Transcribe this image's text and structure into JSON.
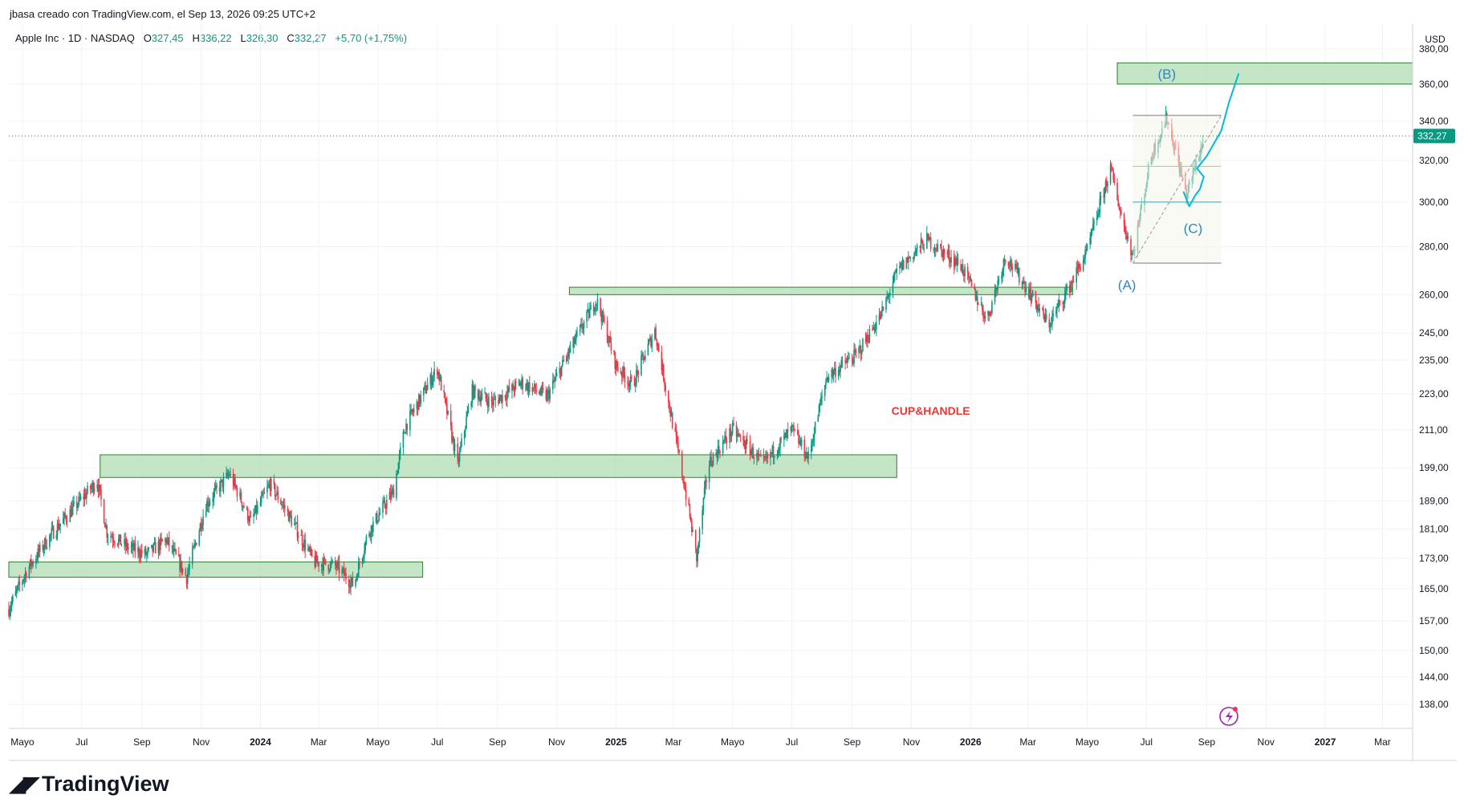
{
  "header": {
    "credit": "jbasa creado con TradingView.com, el Sep 13, 2026 09:25 UTC+2",
    "symbol": "Apple Inc · 1D · NASDAQ",
    "open_label": "O",
    "open": "327,45",
    "high_label": "H",
    "high": "336,22",
    "low_label": "L",
    "low": "326,30",
    "close_label": "C",
    "close": "332,27",
    "change": "+5,70 (+1,75%)"
  },
  "currency": "USD",
  "last_price_label": "332,27",
  "branding": {
    "logo_text": "TradingView"
  },
  "colors": {
    "up": "#089981",
    "down": "#f23645",
    "zone_fill": "#b7deb9",
    "zone_stroke": "#2e7d32",
    "wave_label": "#2e86c1",
    "projection": "#00bcd4",
    "annotation": "#e53935"
  },
  "chart_data": {
    "type": "candlestick",
    "symbol": "AAPL",
    "timeframe": "1D",
    "x_start": "2023-05-01",
    "x_end": "2027-04-15",
    "ylim": [
      133,
      395
    ],
    "y_scale": "log",
    "y_ticks": [
      {
        "v": 380,
        "label": "380,00"
      },
      {
        "v": 360,
        "label": "360,00"
      },
      {
        "v": 340,
        "label": "340,00"
      },
      {
        "v": 320,
        "label": "320,00"
      },
      {
        "v": 300,
        "label": "300,00"
      },
      {
        "v": 280,
        "label": "280,00"
      },
      {
        "v": 260,
        "label": "260,00"
      },
      {
        "v": 245,
        "label": "245,00"
      },
      {
        "v": 235,
        "label": "235,00"
      },
      {
        "v": 223,
        "label": "223,00"
      },
      {
        "v": 211,
        "label": "211,00"
      },
      {
        "v": 199,
        "label": "199,00"
      },
      {
        "v": 189,
        "label": "189,00"
      },
      {
        "v": 181,
        "label": "181,00"
      },
      {
        "v": 173,
        "label": "173,00"
      },
      {
        "v": 165,
        "label": "165,00"
      },
      {
        "v": 157,
        "label": "157,00"
      },
      {
        "v": 150,
        "label": "150,00"
      },
      {
        "v": 144,
        "label": "144,00"
      },
      {
        "v": 138,
        "label": "138,00"
      }
    ],
    "x_ticks": [
      {
        "date": "2023-05-15",
        "label": "Mayo",
        "bold": false
      },
      {
        "date": "2023-07-15",
        "label": "Jul",
        "bold": false
      },
      {
        "date": "2023-09-15",
        "label": "Sep",
        "bold": false
      },
      {
        "date": "2023-11-15",
        "label": "Nov",
        "bold": false
      },
      {
        "date": "2024-01-15",
        "label": "2024",
        "bold": true
      },
      {
        "date": "2024-03-15",
        "label": "Mar",
        "bold": false
      },
      {
        "date": "2024-05-15",
        "label": "Mayo",
        "bold": false
      },
      {
        "date": "2024-07-15",
        "label": "Jul",
        "bold": false
      },
      {
        "date": "2024-09-15",
        "label": "Sep",
        "bold": false
      },
      {
        "date": "2024-11-15",
        "label": "Nov",
        "bold": false
      },
      {
        "date": "2025-01-15",
        "label": "2025",
        "bold": true
      },
      {
        "date": "2025-03-15",
        "label": "Mar",
        "bold": false
      },
      {
        "date": "2025-05-15",
        "label": "Mayo",
        "bold": false
      },
      {
        "date": "2025-07-15",
        "label": "Jul",
        "bold": false
      },
      {
        "date": "2025-09-15",
        "label": "Sep",
        "bold": false
      },
      {
        "date": "2025-11-15",
        "label": "Nov",
        "bold": false
      },
      {
        "date": "2026-01-15",
        "label": "2026",
        "bold": true
      },
      {
        "date": "2026-03-15",
        "label": "Mar",
        "bold": false
      },
      {
        "date": "2026-05-15",
        "label": "Mayo",
        "bold": false
      },
      {
        "date": "2026-07-15",
        "label": "Jul",
        "bold": false
      },
      {
        "date": "2026-09-15",
        "label": "Sep",
        "bold": false
      },
      {
        "date": "2026-11-15",
        "label": "Nov",
        "bold": false
      },
      {
        "date": "2027-01-15",
        "label": "2027",
        "bold": true
      },
      {
        "date": "2027-03-15",
        "label": "Mar",
        "bold": false
      }
    ],
    "price_path": [
      [
        "2023-05-01",
        160
      ],
      [
        "2023-05-20",
        170
      ],
      [
        "2023-06-15",
        180
      ],
      [
        "2023-07-10",
        188
      ],
      [
        "2023-07-31",
        195
      ],
      [
        "2023-08-10",
        180
      ],
      [
        "2023-08-31",
        176
      ],
      [
        "2023-09-20",
        174
      ],
      [
        "2023-10-10",
        178
      ],
      [
        "2023-10-31",
        168
      ],
      [
        "2023-11-20",
        188
      ],
      [
        "2023-12-14",
        197
      ],
      [
        "2024-01-05",
        183
      ],
      [
        "2024-01-25",
        194
      ],
      [
        "2024-02-15",
        184
      ],
      [
        "2024-03-10",
        172
      ],
      [
        "2024-04-01",
        171
      ],
      [
        "2024-04-20",
        166
      ],
      [
        "2024-05-05",
        180
      ],
      [
        "2024-05-31",
        192
      ],
      [
        "2024-06-12",
        212
      ],
      [
        "2024-07-15",
        232
      ],
      [
        "2024-08-05",
        200
      ],
      [
        "2024-08-20",
        224
      ],
      [
        "2024-09-10",
        220
      ],
      [
        "2024-10-10",
        227
      ],
      [
        "2024-11-05",
        222
      ],
      [
        "2024-11-25",
        236
      ],
      [
        "2024-12-26",
        258
      ],
      [
        "2025-01-15",
        233
      ],
      [
        "2025-02-01",
        226
      ],
      [
        "2025-02-24",
        246
      ],
      [
        "2025-03-10",
        220
      ],
      [
        "2025-04-08",
        173
      ],
      [
        "2025-04-20",
        200
      ],
      [
        "2025-05-15",
        211
      ],
      [
        "2025-06-15",
        200
      ],
      [
        "2025-07-15",
        211
      ],
      [
        "2025-08-01",
        202
      ],
      [
        "2025-08-20",
        229
      ],
      [
        "2025-09-20",
        237
      ],
      [
        "2025-10-15",
        252
      ],
      [
        "2025-11-01",
        270
      ],
      [
        "2025-12-01",
        283
      ],
      [
        "2026-01-05",
        272
      ],
      [
        "2026-02-01",
        250
      ],
      [
        "2026-02-20",
        276
      ],
      [
        "2026-03-15",
        262
      ],
      [
        "2026-04-05",
        248
      ],
      [
        "2026-04-25",
        262
      ],
      [
        "2026-05-15",
        278
      ],
      [
        "2026-06-08",
        316
      ],
      [
        "2026-06-20",
        292
      ],
      [
        "2026-07-01",
        276
      ],
      [
        "2026-07-20",
        322
      ],
      [
        "2026-08-05",
        342
      ],
      [
        "2026-08-25",
        303
      ],
      [
        "2026-09-13",
        332
      ]
    ],
    "zones": [
      {
        "from": "2023-05-01",
        "to": "2024-06-30",
        "low": 168,
        "high": 172
      },
      {
        "from": "2023-08-03",
        "to": "2025-10-31",
        "low": 196,
        "high": 203
      },
      {
        "from": "2024-11-28",
        "to": "2026-04-30",
        "low": 260,
        "high": 263
      },
      {
        "from": "2026-06-15",
        "to": "2027-04-15",
        "low": 360,
        "high": 372
      }
    ],
    "fib_box": {
      "from": "2026-07-01",
      "to": "2026-09-30",
      "levels": [
        {
          "price": 343,
          "color": "#787b86"
        },
        {
          "price": 317,
          "color": "#b8c66e"
        },
        {
          "price": 300,
          "color": "#00bcd4"
        },
        {
          "price": 273,
          "color": "#787b86"
        }
      ],
      "diagonal": {
        "from": [
          "2026-07-01",
          273
        ],
        "to": [
          "2026-09-30",
          343
        ]
      }
    },
    "projection": [
      [
        "2026-09-05",
        316
      ],
      [
        "2026-09-15",
        322
      ],
      [
        "2026-09-30",
        335
      ],
      [
        "2026-10-08",
        350
      ],
      [
        "2026-10-18",
        366
      ]
    ],
    "projection_dip": [
      [
        "2026-08-22",
        305
      ],
      [
        "2026-08-28",
        298
      ],
      [
        "2026-09-03",
        303
      ],
      [
        "2026-09-08",
        306
      ],
      [
        "2026-09-12",
        312
      ]
    ],
    "annotations": [
      {
        "text": "(A)",
        "date": "2026-06-25",
        "price": 262
      },
      {
        "text": "(B)",
        "date": "2026-08-05",
        "price": 363
      },
      {
        "text": "(C)",
        "date": "2026-09-01",
        "price": 286
      },
      {
        "text": "CUP&HANDLE",
        "date": "2025-12-05",
        "price": 216
      }
    ],
    "last_price": 332.27
  }
}
